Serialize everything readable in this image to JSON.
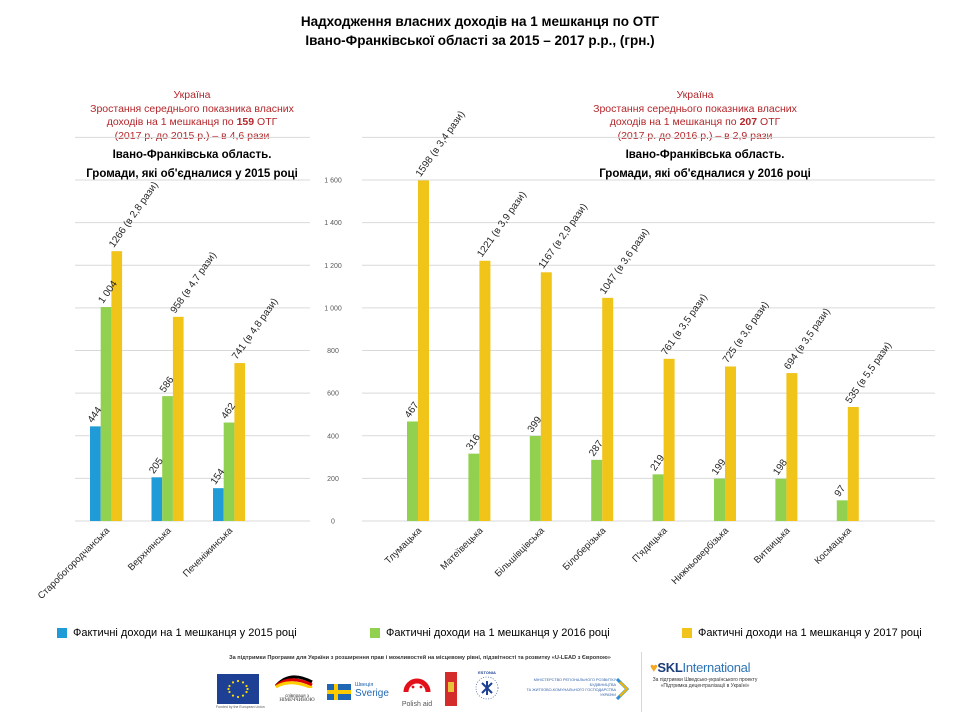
{
  "header": {
    "title_line1": "Надходження власних доходів на 1 мешканця по ОТГ",
    "title_line2": "Івано-Франківської області за 2015 – 2017 р.р., (грн.)"
  },
  "left_panel": {
    "country": "Україна",
    "growth_line1": "Зростання середнього показника власних",
    "growth_line2_pre": "доходів на 1 мешканця по ",
    "growth_count": "159",
    "growth_line2_post": " ОТГ",
    "growth_line3": "(2017 р. до 2015 р.) – в 4,6 рази",
    "region_line1": "Івано-Франківська  область.",
    "region_line2": "Громади,  які  об'єдналися  у 2015 році"
  },
  "right_panel": {
    "country": "Україна",
    "growth_line1": "Зростання середнього показника власних",
    "growth_line2_pre": "доходів на 1 мешканця по ",
    "growth_count": "207",
    "growth_line2_post": " ОТГ",
    "growth_line3": "(2017 р. до 2016 р.) – в 2,9 рази",
    "region_line1": "Івано-Франківська  область.",
    "region_line2": "Громади,  які  об'єдналися  у 2016 році"
  },
  "colors": {
    "y2015": "#1f9bd7",
    "y2016": "#92d050",
    "y2017": "#f0c419",
    "grid": "#d9d9d9",
    "accent_red": "#b3262a"
  },
  "legend": {
    "items": [
      {
        "label": "Фактичні доходи на 1 мешканця у 2015 році",
        "color": "#1f9bd7"
      },
      {
        "label": "Фактичні доходи на 1 мешканця у 2016 році",
        "color": "#92d050"
      },
      {
        "label": "Фактичні доходи на 1 мешканця у 2017 році",
        "color": "#f0c419"
      }
    ]
  },
  "chart_data": [
    {
      "type": "bar",
      "title": "Івано-Франківська область. Громади, які об'єдналися у 2015 році",
      "xlabel": "",
      "ylabel": "",
      "ylim": [
        0,
        1800
      ],
      "yticks": [
        0,
        200,
        400,
        600,
        800,
        1000,
        1200,
        1400,
        1600,
        1800
      ],
      "ytick_labels_shown": false,
      "grid": true,
      "categories": [
        "Старобогородчанська",
        "Верхнянська",
        "Печеніжинська"
      ],
      "series": [
        {
          "name": "Фактичні доходи на 1 мешканця у 2015 році",
          "values": [
            444,
            205,
            154
          ],
          "labels": [
            "444",
            "205",
            "154"
          ]
        },
        {
          "name": "Фактичні доходи на 1 мешканця у 2016 році",
          "values": [
            1004,
            586,
            462
          ],
          "labels": [
            "1 004",
            "586",
            "462"
          ]
        },
        {
          "name": "Фактичні доходи на 1 мешканця у 2017 році",
          "values": [
            1266,
            958,
            741
          ],
          "labels": [
            "1266 (в 2,8 рази)",
            "958 (в 4,7 рази)",
            "741 (в 4,8 рази)"
          ]
        }
      ]
    },
    {
      "type": "bar",
      "title": "Івано-Франківська область. Громади, які об'єдналися у 2016 році",
      "xlabel": "",
      "ylabel": "",
      "ylim": [
        0,
        1800
      ],
      "yticks": [
        0,
        200,
        400,
        600,
        800,
        1000,
        1200,
        1400,
        1600
      ],
      "ytick_labels": [
        "0",
        "200",
        "400",
        "600",
        "800",
        "1 000",
        "1 200",
        "1 400",
        "1 600"
      ],
      "grid": true,
      "categories": [
        "Тлумацька",
        "Матеївецька",
        "Більшівцівська",
        "Білоберізька",
        "П'ядицька",
        "Нижньовербізька",
        "Витвицька",
        "Космацька"
      ],
      "series": [
        {
          "name": "Фактичні доходи на 1 мешканця у 2016 році",
          "values": [
            467,
            316,
            399,
            287,
            219,
            199,
            198,
            97
          ],
          "labels": [
            "467",
            "316",
            "399",
            "287",
            "219",
            "199",
            "198",
            "97"
          ]
        },
        {
          "name": "Фактичні доходи на 1 мешканця у 2017 році",
          "values": [
            1598,
            1221,
            1167,
            1047,
            761,
            725,
            694,
            535
          ],
          "labels": [
            "1598 (в 3,4 рази)",
            "1221 (в 3,9 рази)",
            "1167 (в 2,9 рази)",
            "1047 (в 3,6 рази)",
            "761 (в 3,5 рази)",
            "725 (в 3,6 рази)",
            "694 (в 3,5 рази)",
            "535 (в 5,5 рази)"
          ]
        }
      ]
    }
  ],
  "footer": {
    "support_text": "За підтримки Програми для України з розширення прав і можливостей на місцевому рівні, підзвітності та розвитку «U-LEAD з Європою»",
    "logos": {
      "eu_caption": "Funded by the European Union",
      "germany_line1": "співпраця з",
      "germany_line2": "НІМЕЧЧИНОЮ",
      "sweden_line1": "Швеція",
      "sweden_line2": "Sverige",
      "poland": "Polish aid",
      "estonia": "ESTONIA",
      "ministry_line1": "МІНІСТЕРСТВО РЕГІОНАЛЬНОГО РОЗВИТКУ",
      "ministry_line2": "БУДІВНИЦТВА",
      "ministry_line3": "ТА ЖИТЛОВО-КОМУНАЛЬНОГО ГОСПОДАРСТВА",
      "ministry_line4": "УКРАЇНИ"
    },
    "skl_brand_main": "SKL",
    "skl_brand_sub": "International",
    "skl_note": "За підтримки Шведсько-українського проекту «Підтримка децентралізації в Україні»"
  }
}
